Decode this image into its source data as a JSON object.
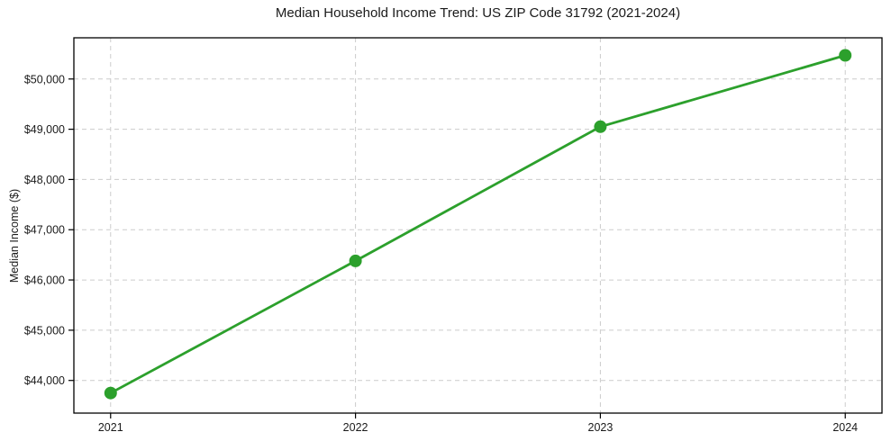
{
  "chart_data": {
    "type": "line",
    "title": "Median Household Income Trend: US ZIP Code 31792 (2021-2024)",
    "xlabel": "",
    "ylabel": "Median Income ($)",
    "x": [
      2021,
      2022,
      2023,
      2024
    ],
    "x_tick_labels": [
      "2021",
      "2022",
      "2023",
      "2024"
    ],
    "series": [
      {
        "name": "Median Household Income",
        "values": [
          43750,
          46380,
          49050,
          50470
        ],
        "color": "#2ca02c",
        "marker": "circle",
        "marker_radius": 7,
        "line_width": 2.8
      }
    ],
    "y_ticks": [
      {
        "value": 44000,
        "label": "$44,000"
      },
      {
        "value": 45000,
        "label": "$45,000"
      },
      {
        "value": 46000,
        "label": "$46,000"
      },
      {
        "value": 47000,
        "label": "$47,000"
      },
      {
        "value": 48000,
        "label": "$48,000"
      },
      {
        "value": 49000,
        "label": "$49,000"
      },
      {
        "value": 50000,
        "label": "$50,000"
      }
    ],
    "xlim": [
      2020.85,
      2024.15
    ],
    "ylim": [
      43350,
      50820
    ],
    "grid": true,
    "grid_style": "dashed",
    "legend_position": "none",
    "background": "#ffffff",
    "style": {
      "text_color": "#1a1a1a",
      "grid_color": "#cccccc",
      "frame_color": "#000000"
    }
  }
}
